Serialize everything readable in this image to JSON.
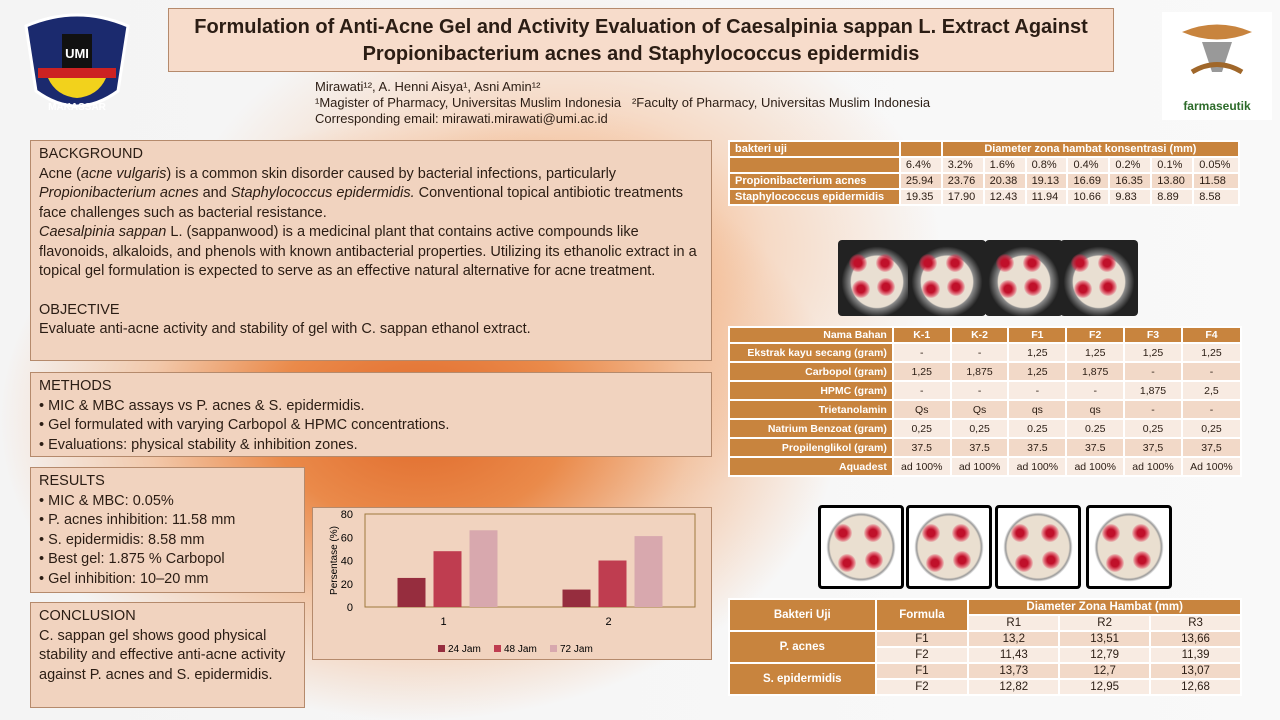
{
  "logos": {
    "left": "UNIVERSITAS MUSLIM INDONESIA MAKASSAR UMI",
    "right": "Laboratorium Farmaseutik"
  },
  "title": "Formulation of Anti-Acne Gel and Activity Evaluation of Caesalpinia sappan L. Extract Against Propionibacterium acnes and Staphylococcus epidermidis",
  "authors": {
    "names": "Mirawati¹², A. Henni Aisya¹, Asni Amin¹²",
    "affil1": "¹Magister of Pharmacy, Universitas Muslim Indonesia",
    "affil2": "²Faculty of Pharmacy, Universitas Muslim Indonesia",
    "email": "Corresponding email: mirawati.mirawati@umi.ac.id"
  },
  "background": {
    "heading": "BACKGROUND",
    "p1a": "Acne (",
    "p1b": "acne vulgaris",
    "p1c": ") is a common skin disorder caused by bacterial infections, particularly ",
    "p1d": "Propionibacterium acnes",
    "p1e": " and ",
    "p1f": "Staphylococcus epidermidis.",
    "p1g": " Conventional topical antibiotic treatments face challenges such as bacterial resistance.",
    "p2a": "Caesalpinia sappan",
    "p2b": " L. (sappanwood) is a medicinal plant that contains active compounds like flavonoids, alkaloids, and phenols with known antibacterial properties. Utilizing its ethanolic extract in a topical gel formulation is expected to serve as an effective natural alternative for acne treatment.",
    "obj_heading": "OBJECTIVE",
    "obj": "Evaluate anti-acne activity and stability of gel with C. sappan ethanol extract."
  },
  "methods": {
    "heading": "METHODS",
    "items": [
      "• MIC & MBC assays vs P. acnes & S. epidermidis.",
      "• Gel formulated with varying Carbopol & HPMC concentrations.",
      "• Evaluations: physical stability & inhibition zones."
    ]
  },
  "results": {
    "heading": "RESULTS",
    "items": [
      "• MIC & MBC: 0.05%",
      "• P. acnes inhibition: 11.58 mm",
      "• S. epidermidis: 8.58 mm",
      "• Best gel: 1.875 % Carbopol",
      "• Gel inhibition: 10–20 mm"
    ]
  },
  "conclusion": {
    "heading": "CONCLUSION",
    "text": "C. sappan gel shows good physical stability and effective anti-acne activity against P. acnes and S. epidermidis."
  },
  "chart_data": {
    "type": "bar",
    "categories": [
      "1",
      "2"
    ],
    "series": [
      {
        "name": "24 Jam",
        "values": [
          25,
          15
        ],
        "color": "#962d3e"
      },
      {
        "name": "48 Jam",
        "values": [
          48,
          40
        ],
        "color": "#bf3d50"
      },
      {
        "name": "72 Jam",
        "values": [
          66,
          61
        ],
        "color": "#d8a8ae"
      }
    ],
    "ylabel": "Persentase (%)",
    "ylim": [
      0,
      80
    ],
    "yticks": [
      "0",
      "20",
      "40",
      "60",
      "80"
    ],
    "legend": "bottom"
  },
  "table1": {
    "h1": "bakteri uji",
    "h2": "Diameter zona hambat konsentrasi (mm)",
    "conc": [
      "6.4%",
      "3.2%",
      "1.6%",
      "0.8%",
      "0.4%",
      "0.2%",
      "0.1%",
      "0.05%"
    ],
    "rows": [
      {
        "name": "Propionibacterium acnes",
        "v": [
          "25.94",
          "23.76",
          "20.38",
          "19.13",
          "16.69",
          "16.35",
          "13.80",
          "11.58"
        ]
      },
      {
        "name": "Staphylococcus epidermidis",
        "v": [
          "19.35",
          "17.90",
          "12.43",
          "11.94",
          "10.66",
          "9.83",
          "8.89",
          "8.58"
        ]
      }
    ]
  },
  "table2": {
    "header": [
      "Nama Bahan",
      "K-1",
      "K-2",
      "F1",
      "F2",
      "F3",
      "F4"
    ],
    "rows": [
      [
        "Ekstrak kayu secang (gram)",
        "-",
        "-",
        "1,25",
        "1,25",
        "1,25",
        "1,25"
      ],
      [
        "Carbopol (gram)",
        "1,25",
        "1,875",
        "1,25",
        "1,875",
        "-",
        "-"
      ],
      [
        "HPMC (gram)",
        "-",
        "-",
        "-",
        "-",
        "1,875",
        "2,5"
      ],
      [
        "Trietanolamin",
        "Qs",
        "Qs",
        "qs",
        "qs",
        "-",
        "-"
      ],
      [
        "Natrium Benzoat (gram)",
        "0,25",
        "0,25",
        "0.25",
        "0.25",
        "0,25",
        "0,25"
      ],
      [
        "Propilenglikol (gram)",
        "37.5",
        "37.5",
        "37.5",
        "37.5",
        "37,5",
        "37,5"
      ],
      [
        "Aquadest",
        "ad 100%",
        "ad 100%",
        "ad 100%",
        "ad 100%",
        "ad 100%",
        "Ad 100%"
      ]
    ]
  },
  "table3": {
    "h_bakteri": "Bakteri Uji",
    "h_formula": "Formula",
    "h_diam": "Diameter Zona Hambat (mm)",
    "reps": [
      "R1",
      "R2",
      "R3"
    ],
    "groups": [
      {
        "name": "P. acnes",
        "rows": [
          [
            "F1",
            "13,2",
            "13,51",
            "13,66"
          ],
          [
            "F2",
            "11,43",
            "12,79",
            "11,39"
          ]
        ]
      },
      {
        "name": "S. epidermidis",
        "rows": [
          [
            "F1",
            "13,73",
            "12,7",
            "13,07"
          ],
          [
            "F2",
            "12,82",
            "12,95",
            "12,68"
          ]
        ]
      }
    ]
  }
}
